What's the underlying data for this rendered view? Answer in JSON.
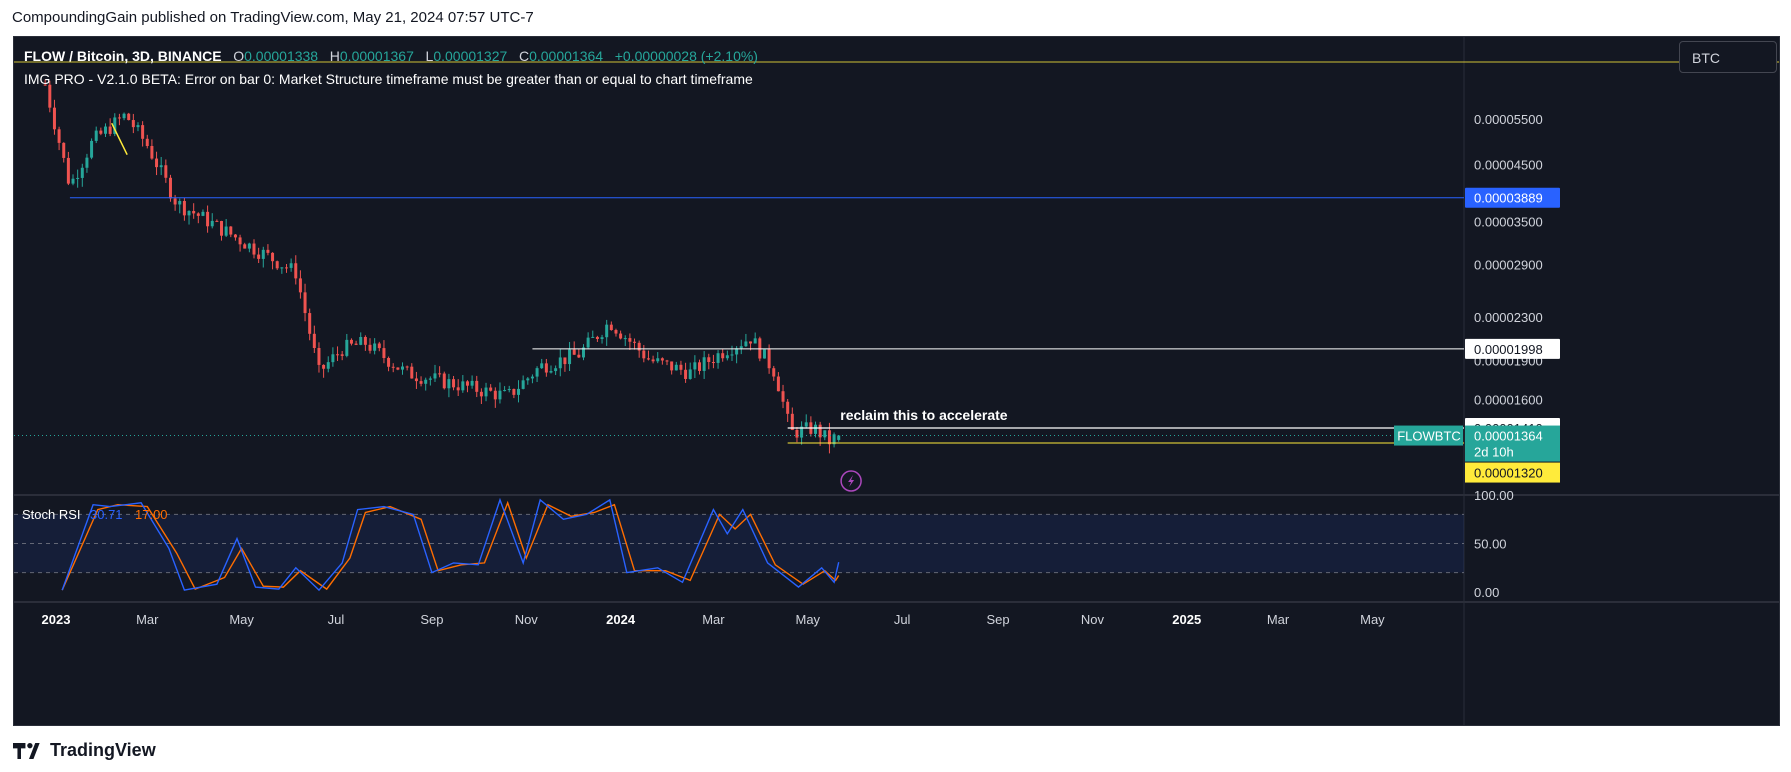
{
  "header": {
    "published_text": "CompoundingGain published on TradingView.com, May 21, 2024 07:57 UTC-7"
  },
  "legend": {
    "symbol": "FLOW / Bitcoin, 3D, BINANCE",
    "open_label": "O",
    "open": "0.00001338",
    "high_label": "H",
    "high": "0.00001367",
    "low_label": "L",
    "low": "0.00001327",
    "close_label": "C",
    "close": "0.00001364",
    "change": "+0.00000028 (+2.10%)"
  },
  "indicator_error": "IMG PRO - V2.1.0 BETA: Error on bar 0: Market Structure timeframe must be greater than or equal to chart timeframe",
  "currency_label": "BTC",
  "annotation": "reclaim this to accelerate",
  "price_scale": {
    "ticks": [
      "0.00005500",
      "0.00004500",
      "0.00003500",
      "0.00002900",
      "0.00002300",
      "0.00001900",
      "0.00001600"
    ],
    "tags": {
      "blue_level": "0.00003889",
      "white_level": "0.00001998",
      "reclaim_level": "0.00001410",
      "current_symbol": "FLOWBTC",
      "current_price": "0.00001364",
      "countdown": "2d 10h",
      "yellow_level": "0.00001320"
    }
  },
  "rsi": {
    "title": "Stoch RSI",
    "k_value": "30.71",
    "d_value": "17.00",
    "ticks": [
      "100.00",
      "50.00",
      "0.00"
    ]
  },
  "time_axis": {
    "labels": [
      {
        "text": "2023",
        "bold": true
      },
      {
        "text": "Mar",
        "bold": false
      },
      {
        "text": "May",
        "bold": false
      },
      {
        "text": "Jul",
        "bold": false
      },
      {
        "text": "Sep",
        "bold": false
      },
      {
        "text": "Nov",
        "bold": false
      },
      {
        "text": "2024",
        "bold": true
      },
      {
        "text": "Mar",
        "bold": false
      },
      {
        "text": "May",
        "bold": false
      },
      {
        "text": "Jul",
        "bold": false
      },
      {
        "text": "Sep",
        "bold": false
      },
      {
        "text": "Nov",
        "bold": false
      },
      {
        "text": "2025",
        "bold": true
      },
      {
        "text": "Mar",
        "bold": false
      },
      {
        "text": "May",
        "bold": false
      }
    ]
  },
  "footer": {
    "brand": "TradingView"
  },
  "colors": {
    "background": "#131722",
    "up": "#26a69a",
    "down": "#ef5350",
    "blue_line": "#2962ff",
    "yellow_line": "#ffeb3b",
    "k_line": "#2962ff",
    "d_line": "#ff6d00"
  },
  "chart_data": {
    "type": "candlestick",
    "symbol": "FLOW / Bitcoin",
    "timeframe": "3D",
    "exchange": "BINANCE",
    "x_range": [
      "2023-01-01",
      "2025-06-15"
    ],
    "y_scale": "log",
    "horizontal_levels": [
      {
        "price": 3.889e-05,
        "color": "#2962ff"
      },
      {
        "price": 1.998e-05,
        "color": "#ffffff"
      },
      {
        "price": 1.41e-05,
        "color": "#ffffff",
        "note": "reclaim this to accelerate"
      },
      {
        "price": 1.32e-05,
        "color": "#ffeb3b"
      }
    ],
    "approx_closes": [
      {
        "date": "2022-12-25",
        "close": 6.4e-05
      },
      {
        "date": "2023-01-10",
        "close": 4.1e-05
      },
      {
        "date": "2023-01-25",
        "close": 5e-05
      },
      {
        "date": "2023-02-15",
        "close": 5.6e-05
      },
      {
        "date": "2023-03-01",
        "close": 4.9e-05
      },
      {
        "date": "2023-03-20",
        "close": 3.8e-05
      },
      {
        "date": "2023-04-10",
        "close": 3.5e-05
      },
      {
        "date": "2023-05-10",
        "close": 3.1e-05
      },
      {
        "date": "2023-06-05",
        "close": 2.8e-05
      },
      {
        "date": "2023-06-20",
        "close": 1.8e-05
      },
      {
        "date": "2023-07-05",
        "close": 2e-05
      },
      {
        "date": "2023-07-20",
        "close": 2.05e-05
      },
      {
        "date": "2023-08-15",
        "close": 1.8e-05
      },
      {
        "date": "2023-09-20",
        "close": 1.7e-05
      },
      {
        "date": "2023-10-20",
        "close": 1.62e-05
      },
      {
        "date": "2023-11-10",
        "close": 1.85e-05
      },
      {
        "date": "2023-12-05",
        "close": 1.95e-05
      },
      {
        "date": "2023-12-25",
        "close": 2.25e-05
      },
      {
        "date": "2024-01-20",
        "close": 1.9e-05
      },
      {
        "date": "2024-02-15",
        "close": 1.8e-05
      },
      {
        "date": "2024-03-10",
        "close": 2e-05
      },
      {
        "date": "2024-03-25",
        "close": 2.1e-05
      },
      {
        "date": "2024-04-10",
        "close": 1.8e-05
      },
      {
        "date": "2024-04-20",
        "close": 1.38e-05
      },
      {
        "date": "2024-05-05",
        "close": 1.41e-05
      },
      {
        "date": "2024-05-15",
        "close": 1.33e-05
      },
      {
        "date": "2024-05-21",
        "close": 1.364e-05
      }
    ],
    "stoch_rsi": {
      "k_name": "K",
      "d_name": "D",
      "y_range": [
        0,
        100
      ],
      "bands": [
        20,
        50,
        80
      ],
      "k": [
        {
          "date": "2023-01-05",
          "v": 2
        },
        {
          "date": "2023-01-25",
          "v": 90
        },
        {
          "date": "2023-02-05",
          "v": 88
        },
        {
          "date": "2023-02-25",
          "v": 92
        },
        {
          "date": "2023-03-15",
          "v": 45
        },
        {
          "date": "2023-03-25",
          "v": 2
        },
        {
          "date": "2023-04-15",
          "v": 8
        },
        {
          "date": "2023-04-28",
          "v": 55
        },
        {
          "date": "2023-05-10",
          "v": 5
        },
        {
          "date": "2023-05-25",
          "v": 3
        },
        {
          "date": "2023-06-05",
          "v": 25
        },
        {
          "date": "2023-06-20",
          "v": 2
        },
        {
          "date": "2023-07-05",
          "v": 30
        },
        {
          "date": "2023-07-15",
          "v": 85
        },
        {
          "date": "2023-08-01",
          "v": 88
        },
        {
          "date": "2023-08-20",
          "v": 80
        },
        {
          "date": "2023-09-01",
          "v": 20
        },
        {
          "date": "2023-09-15",
          "v": 30
        },
        {
          "date": "2023-10-01",
          "v": 28
        },
        {
          "date": "2023-10-15",
          "v": 95
        },
        {
          "date": "2023-10-30",
          "v": 30
        },
        {
          "date": "2023-11-10",
          "v": 95
        },
        {
          "date": "2023-11-25",
          "v": 75
        },
        {
          "date": "2023-12-10",
          "v": 80
        },
        {
          "date": "2023-12-25",
          "v": 95
        },
        {
          "date": "2024-01-05",
          "v": 20
        },
        {
          "date": "2024-01-25",
          "v": 25
        },
        {
          "date": "2024-02-10",
          "v": 10
        },
        {
          "date": "2024-03-01",
          "v": 85
        },
        {
          "date": "2024-03-10",
          "v": 60
        },
        {
          "date": "2024-03-20",
          "v": 85
        },
        {
          "date": "2024-04-05",
          "v": 30
        },
        {
          "date": "2024-04-25",
          "v": 5
        },
        {
          "date": "2024-05-10",
          "v": 25
        },
        {
          "date": "2024-05-18",
          "v": 10
        },
        {
          "date": "2024-05-21",
          "v": 30.71
        }
      ],
      "d": [
        {
          "date": "2023-01-05",
          "v": 2
        },
        {
          "date": "2023-01-28",
          "v": 85
        },
        {
          "date": "2023-02-10",
          "v": 90
        },
        {
          "date": "2023-03-01",
          "v": 88
        },
        {
          "date": "2023-03-20",
          "v": 40
        },
        {
          "date": "2023-04-01",
          "v": 3
        },
        {
          "date": "2023-04-20",
          "v": 15
        },
        {
          "date": "2023-05-01",
          "v": 45
        },
        {
          "date": "2023-05-15",
          "v": 6
        },
        {
          "date": "2023-05-28",
          "v": 5
        },
        {
          "date": "2023-06-08",
          "v": 22
        },
        {
          "date": "2023-06-25",
          "v": 3
        },
        {
          "date": "2023-07-10",
          "v": 35
        },
        {
          "date": "2023-07-20",
          "v": 82
        },
        {
          "date": "2023-08-05",
          "v": 88
        },
        {
          "date": "2023-08-25",
          "v": 75
        },
        {
          "date": "2023-09-05",
          "v": 22
        },
        {
          "date": "2023-09-20",
          "v": 28
        },
        {
          "date": "2023-10-05",
          "v": 30
        },
        {
          "date": "2023-10-20",
          "v": 92
        },
        {
          "date": "2023-11-01",
          "v": 35
        },
        {
          "date": "2023-11-15",
          "v": 90
        },
        {
          "date": "2023-11-30",
          "v": 78
        },
        {
          "date": "2023-12-15",
          "v": 82
        },
        {
          "date": "2023-12-28",
          "v": 90
        },
        {
          "date": "2024-01-10",
          "v": 22
        },
        {
          "date": "2024-01-30",
          "v": 22
        },
        {
          "date": "2024-02-15",
          "v": 12
        },
        {
          "date": "2024-03-05",
          "v": 80
        },
        {
          "date": "2024-03-15",
          "v": 65
        },
        {
          "date": "2024-03-25",
          "v": 80
        },
        {
          "date": "2024-04-10",
          "v": 28
        },
        {
          "date": "2024-04-28",
          "v": 8
        },
        {
          "date": "2024-05-12",
          "v": 22
        },
        {
          "date": "2024-05-19",
          "v": 12
        },
        {
          "date": "2024-05-21",
          "v": 17
        }
      ]
    }
  }
}
